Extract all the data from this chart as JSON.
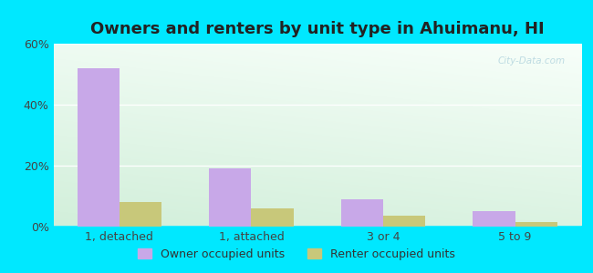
{
  "title": "Owners and renters by unit type in Ahuimanu, HI",
  "categories": [
    "1, detached",
    "1, attached",
    "3 or 4",
    "5 to 9"
  ],
  "owner_values": [
    52,
    19,
    9,
    5
  ],
  "renter_values": [
    8,
    6,
    3.5,
    1.5
  ],
  "owner_color": "#c8a8e8",
  "renter_color": "#c8c87a",
  "ylim": [
    0,
    60
  ],
  "yticks": [
    0,
    20,
    40,
    60
  ],
  "ytick_labels": [
    "0%",
    "20%",
    "40%",
    "60%"
  ],
  "bar_width": 0.32,
  "background_outer": "#00e8ff",
  "legend_owner": "Owner occupied units",
  "legend_renter": "Renter occupied units",
  "title_fontsize": 13,
  "axis_fontsize": 9,
  "legend_fontsize": 9,
  "bg_top_color": "#f8fffa",
  "bg_bottom_color": "#d0f0d8",
  "watermark_color": "#b8d8e0",
  "watermark_text": "City-Data.com"
}
